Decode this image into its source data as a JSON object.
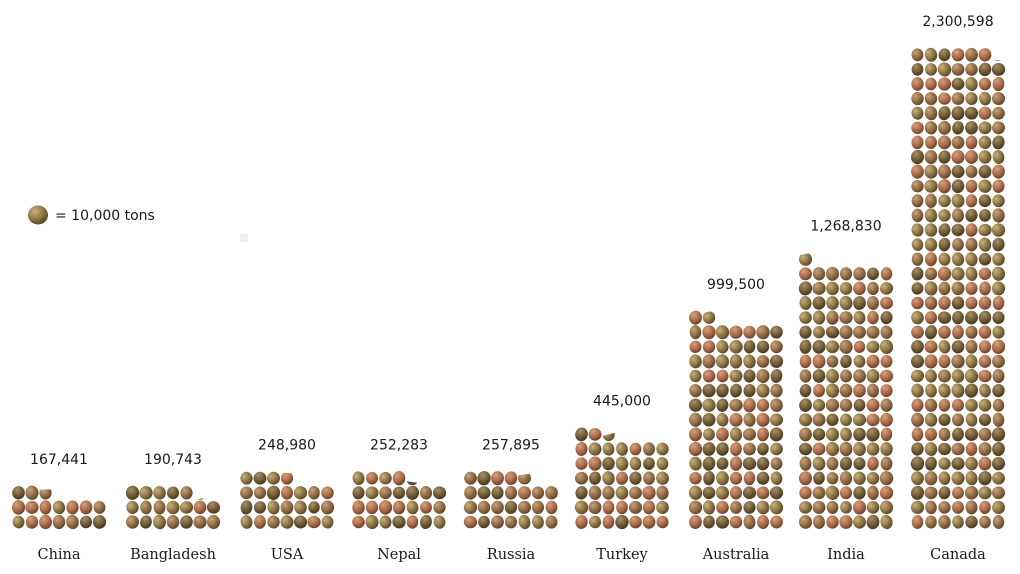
{
  "chart_data": {
    "type": "bar",
    "categories": [
      "China",
      "Bangladesh",
      "USA",
      "Nepal",
      "Russia",
      "Turkey",
      "Australia",
      "India",
      "Canada"
    ],
    "values": [
      167441,
      190743,
      248980,
      252283,
      257895,
      445000,
      999500,
      1268830,
      2300598
    ],
    "value_labels": [
      "167,441",
      "190,743",
      "248,980",
      "252,283",
      "257,895",
      "445,000",
      "999,500",
      "1,268,830",
      "2,300,598"
    ],
    "unit_value": 10000,
    "legend_text": "= 10,000 tons",
    "legend_placement": "left-middle",
    "grid": false,
    "colors": {
      "item_light": "#c4a77c",
      "item_mid": "#8b6e45",
      "item_dark": "#4f3d24",
      "item_reddish": "#b26d4a",
      "item_greenish": "#7a6e3c",
      "text": "#1a1a1a"
    }
  }
}
